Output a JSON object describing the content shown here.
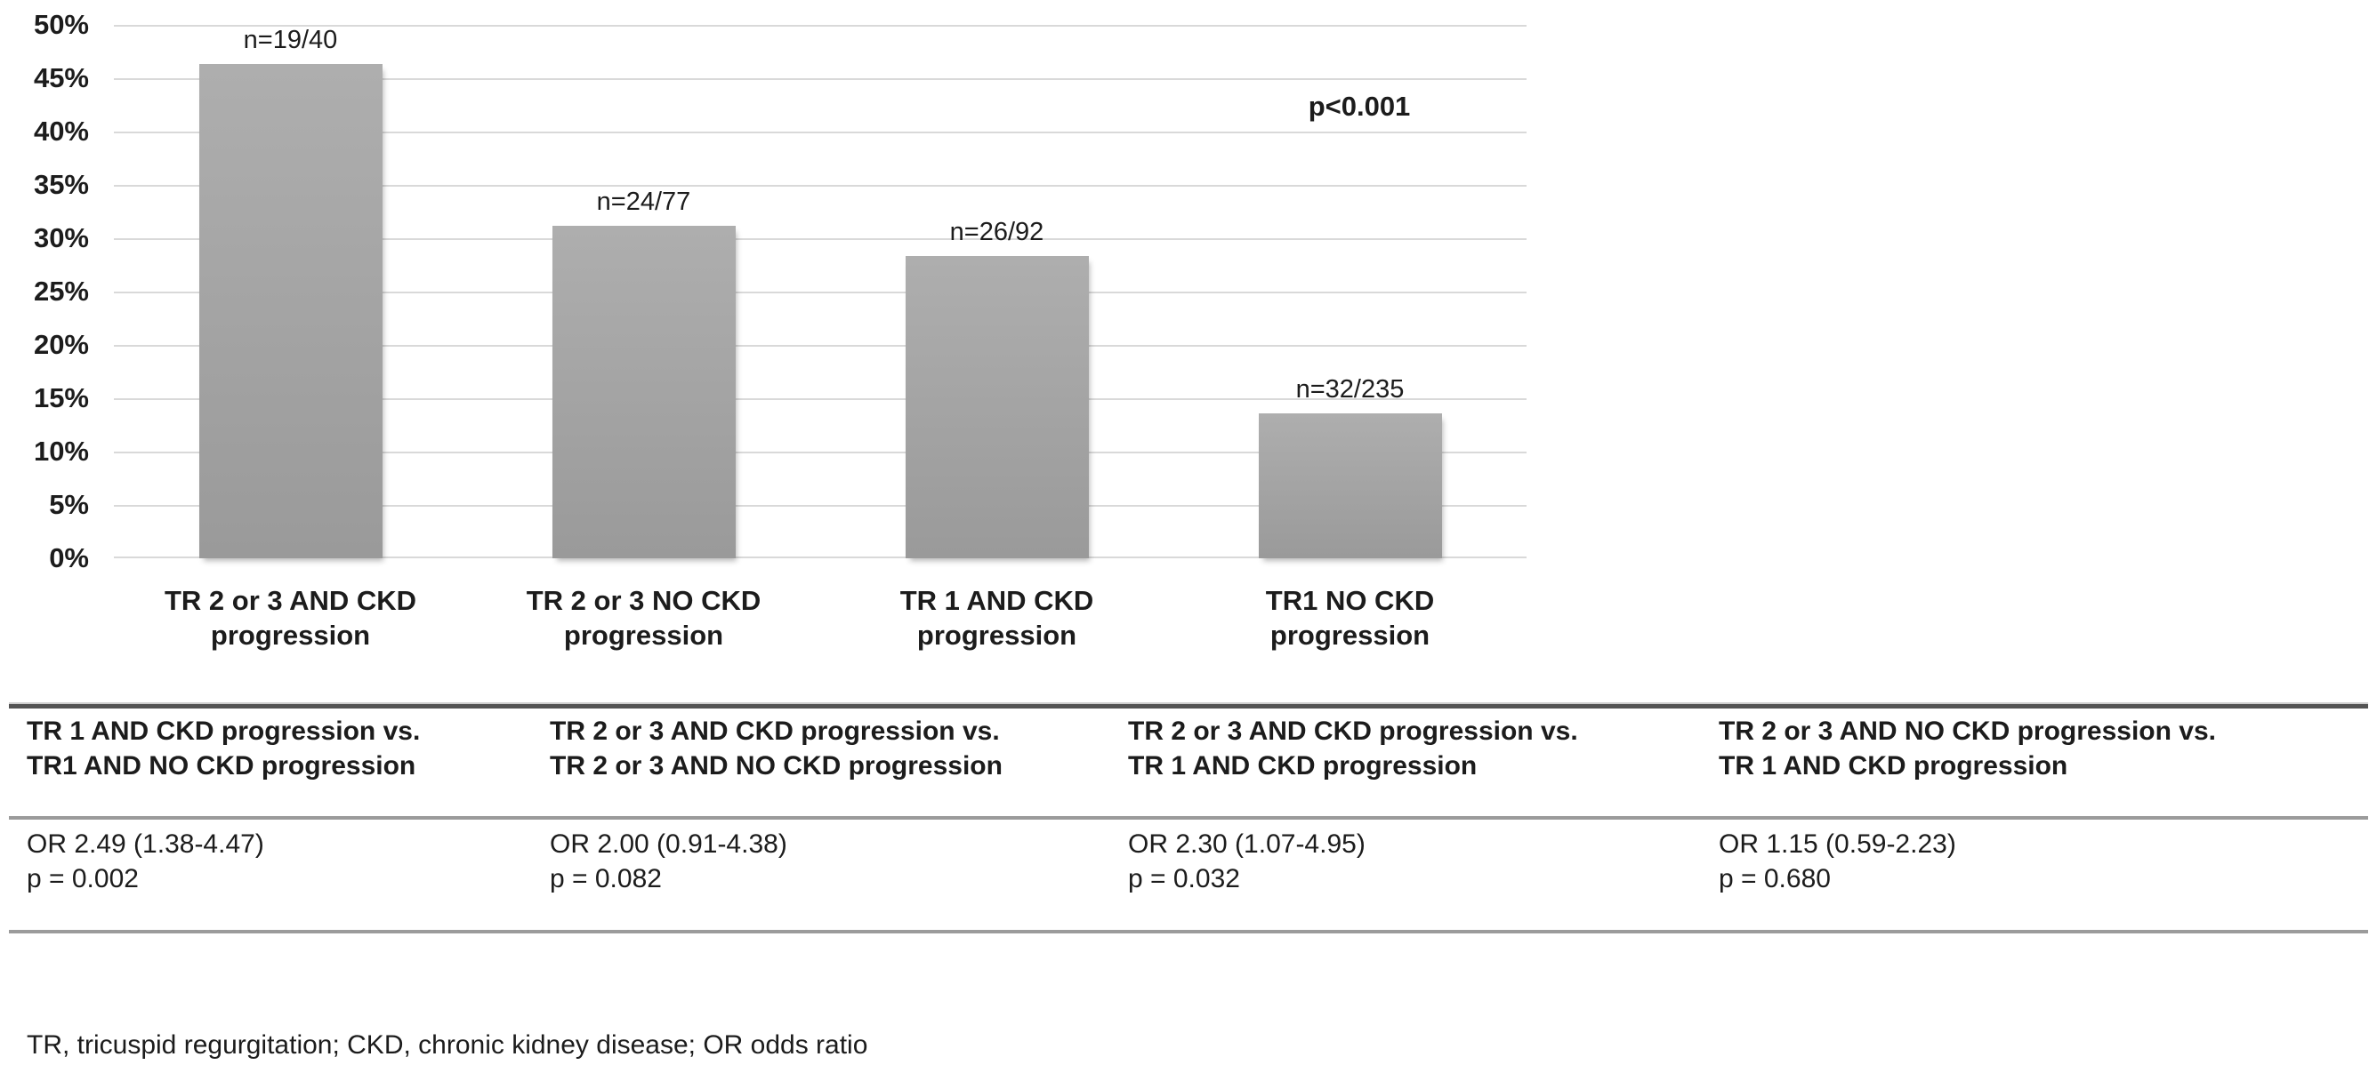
{
  "chart": {
    "y_ticks": [
      "50%",
      "45%",
      "40%",
      "35%",
      "30%",
      "25%",
      "20%",
      "15%",
      "10%",
      "5%",
      "0%"
    ],
    "p_annotation": "p<0.001",
    "bars": [
      {
        "n_label": "n=19/40",
        "label_line1": "TR 2 or 3 AND CKD",
        "label_line2": "progression"
      },
      {
        "n_label": "n=24/77",
        "label_line1": "TR 2 or 3 NO CKD",
        "label_line2": "progression"
      },
      {
        "n_label": "n=26/92",
        "label_line1": "TR 1 AND CKD",
        "label_line2": "progression"
      },
      {
        "n_label": "n=32/235",
        "label_line1": "TR1 NO CKD",
        "label_line2": "progression"
      }
    ]
  },
  "chart_data": {
    "type": "bar",
    "title": "",
    "xlabel": "",
    "ylabel": "",
    "categories": [
      "TR 2 or 3 AND CKD progression",
      "TR 2 or 3 NO CKD progression",
      "TR 1 AND CKD progression",
      "TR1 NO CKD progression"
    ],
    "values": [
      47.5,
      31.2,
      28.3,
      13.6
    ],
    "value_unit": "%",
    "bar_labels": [
      "n=19/40",
      "n=24/77",
      "n=26/92",
      "n=32/235"
    ],
    "n_events": [
      19,
      24,
      26,
      32
    ],
    "n_totals": [
      40,
      77,
      92,
      235
    ],
    "annotations": [
      "p<0.001"
    ],
    "ylim": [
      0,
      50
    ],
    "y_tick_step": 5,
    "grid": true,
    "legend": "none",
    "bar_color": "#a6a6a6",
    "gridline_color": "#d9d9d9"
  },
  "comparison_table": {
    "columns": [
      {
        "header_line1": "TR 1 AND CKD progression vs.",
        "header_line2": "TR1 AND NO CKD progression",
        "or_text": "OR 2.49 (1.38-4.47)",
        "p_text": "p = 0.002"
      },
      {
        "header_line1": "TR 2 or 3 AND CKD progression vs.",
        "header_line2": "TR 2 or 3 AND NO CKD progression",
        "or_text": "OR 2.00 (0.91-4.38)",
        "p_text": "p = 0.082"
      },
      {
        "header_line1": "TR 2 or 3 AND CKD progression vs.",
        "header_line2": "TR 1 AND CKD progression",
        "or_text": "OR 2.30 (1.07-4.95)",
        "p_text": "p = 0.032"
      },
      {
        "header_line1": "TR 2 or 3 AND NO CKD progression vs.",
        "header_line2": "TR 1 AND CKD progression",
        "or_text": "OR 1.15 (0.59-2.23)",
        "p_text": "p = 0.680"
      }
    ]
  },
  "footnote": "TR, tricuspid regurgitation; CKD, chronic kidney disease; OR odds ratio"
}
